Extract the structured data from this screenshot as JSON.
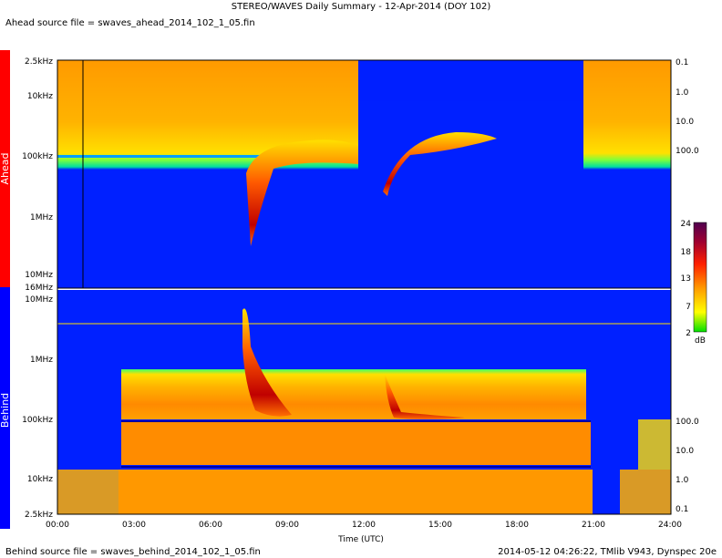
{
  "header": {
    "title": "STEREO/WAVES Daily Summary - 12-Apr-2014 (DOY 102)",
    "ahead_source": "Ahead source file = swaves_ahead_2014_102_1_05.fin",
    "behind_source": "Behind source file = swaves_behind_2014_102_1_05.fin",
    "footer_right": "2014-05-12 04:26:22, TMlib V943, Dynspec 20e"
  },
  "colors": {
    "ahead": "#ff0000",
    "behind": "#0000ff",
    "background": "#0020ff"
  },
  "chart_data": {
    "type": "heatmap",
    "xlabel": "Time (UTC)",
    "x_ticks": [
      "00:00",
      "03:00",
      "06:00",
      "09:00",
      "12:00",
      "15:00",
      "18:00",
      "21:00",
      "24:00"
    ],
    "x_range_hours": [
      0,
      24
    ],
    "panels": [
      {
        "name": "Ahead",
        "freq_ticks": [
          "2.5kHz",
          "10kHz",
          "100kHz",
          "1MHz",
          "10MHz",
          "16MHz"
        ],
        "right_ticks": [
          "0.1",
          "1.0",
          "10.0",
          "100.0"
        ]
      },
      {
        "name": "Behind",
        "freq_ticks": [
          "10MHz",
          "1MHz",
          "100kHz",
          "10kHz",
          "2.5kHz"
        ],
        "right_ticks": [
          "100.0",
          "10.0",
          "1.0",
          "0.1"
        ]
      }
    ],
    "colorbar": {
      "ticks": [
        "24",
        "18",
        "13",
        "7",
        "2"
      ],
      "unit": "dB",
      "range": [
        2,
        24
      ]
    }
  }
}
